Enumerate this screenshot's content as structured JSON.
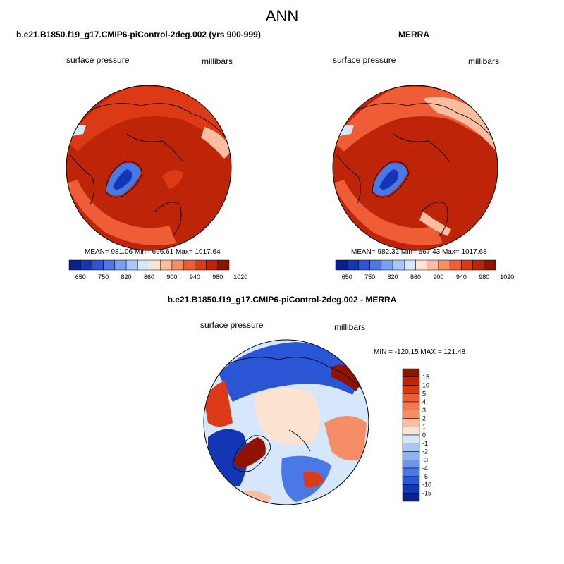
{
  "title": "ANN",
  "panels": [
    {
      "title": "b.e21.B1850.f19_g17.CMIP6-piControl-2deg.002 (yrs 900-999)",
      "left_label": "surface pressure",
      "right_label": "millibars",
      "stats": "MEAN= 981.06  Min= 696.61  Max= 1017.64"
    },
    {
      "title": "MERRA",
      "left_label": "surface pressure",
      "right_label": "millibars",
      "stats": "MEAN= 982.32  Min= 667.43  Max= 1017.68"
    },
    {
      "title": "b.e21.B1850.f19_g17.CMIP6-piControl-2deg.002 - MERRA",
      "left_label": "surface pressure",
      "right_label": "millibars",
      "stats": "MIN = -120.15 MAX = 121.48"
    }
  ],
  "colorbar_abs": {
    "tick_labels": [
      "650",
      "750",
      "820",
      "860",
      "900",
      "940",
      "980",
      "1020"
    ],
    "colors": [
      "#0b1f8e",
      "#1336b5",
      "#2a55d4",
      "#4a78e6",
      "#7aa0f0",
      "#aac6f6",
      "#d6e6fb",
      "#fde3d2",
      "#f9bea0",
      "#f58e66",
      "#ee5d35",
      "#dc3a17",
      "#bd2408",
      "#8f1203"
    ]
  },
  "colorbar_diff": {
    "tick_labels": [
      "15",
      "10",
      "5",
      "4",
      "3",
      "2",
      "1",
      "0",
      "-1",
      "-2",
      "-3",
      "-4",
      "-5",
      "-10",
      "-15"
    ],
    "colors": [
      "#8f1203",
      "#bd2408",
      "#dc3a17",
      "#ee5d35",
      "#f07850",
      "#f58e66",
      "#f9bea0",
      "#fde3d2",
      "#d6e6fb",
      "#aac6f6",
      "#8fb2f2",
      "#6d95ec",
      "#4a78e6",
      "#2a55d4",
      "#1336b5",
      "#0b1f8e"
    ]
  }
}
